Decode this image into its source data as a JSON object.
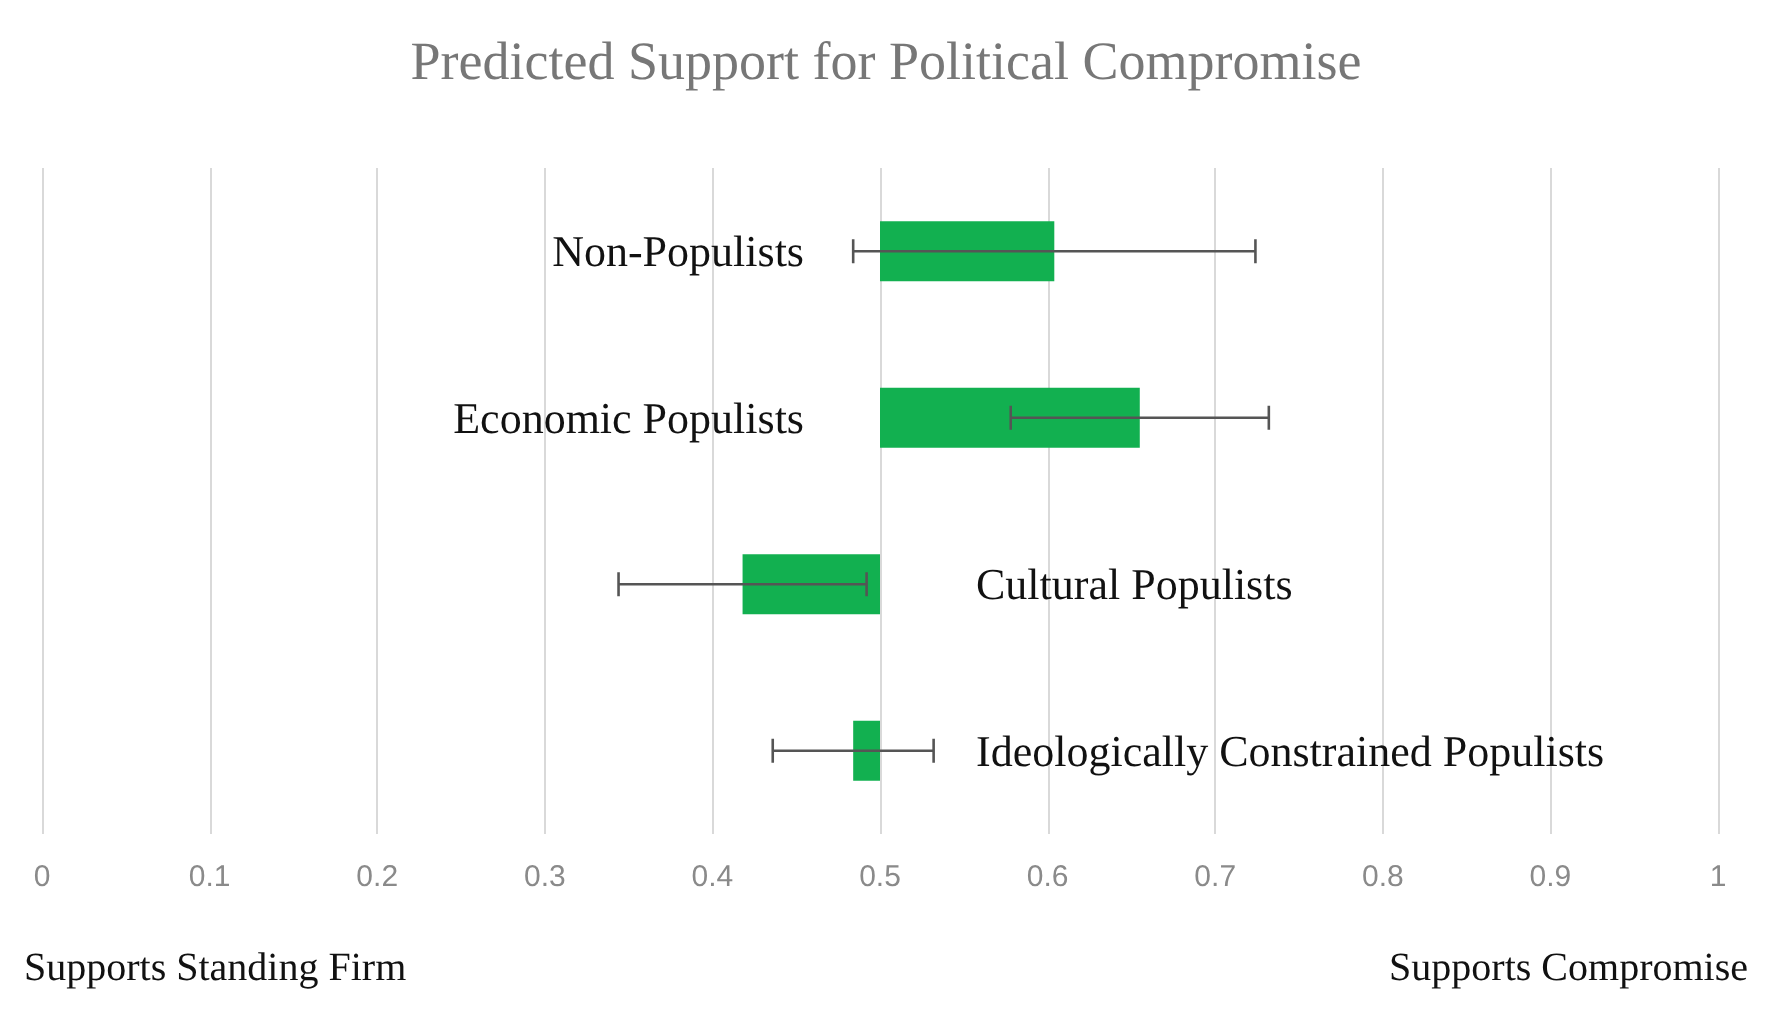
{
  "chart_data": {
    "type": "bar",
    "orientation": "horizontal",
    "title": "Predicted Support for Political Compromise",
    "categories": [
      "Non-Populists",
      "Economic Populists",
      "Cultural Populists",
      "Ideologically Constrained Populists"
    ],
    "base": [
      0.5,
      0.5,
      0.5,
      0.5
    ],
    "values": [
      0.104,
      0.155,
      -0.082,
      -0.016
    ],
    "errors": [
      0.12,
      0.077,
      0.074,
      0.048
    ],
    "color": "#12b050",
    "xlim": [
      0,
      1
    ],
    "xticks": [
      0,
      0.1,
      0.2,
      0.3,
      0.4,
      0.5,
      0.6,
      0.7,
      0.8,
      0.9,
      1
    ],
    "grid": "x",
    "annotations": [
      "Supports Standing Firm",
      "Supports Compromise"
    ]
  }
}
